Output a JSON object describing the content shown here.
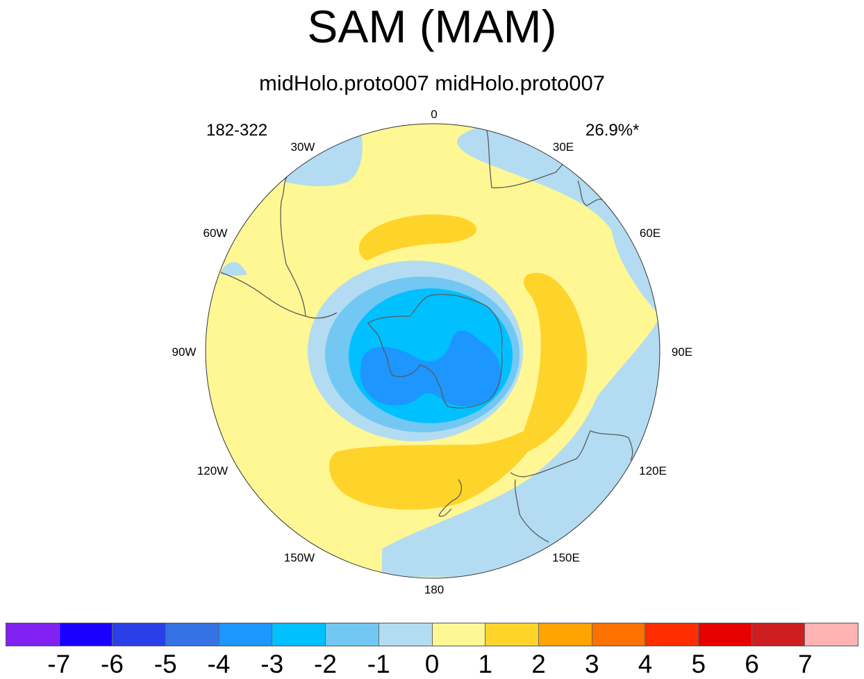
{
  "title": "SAM (MAM)",
  "subtitle": "midHolo.proto007  midHolo.proto007",
  "left_annotation": "182-322",
  "right_annotation": "26.9%*",
  "map": {
    "projection": "south polar stereographic",
    "longitude_labels": [
      "0",
      "30E",
      "60E",
      "90E",
      "120E",
      "150E",
      "180",
      "150W",
      "120W",
      "90W",
      "60W",
      "30W"
    ],
    "features": [
      "Antarctica",
      "South America",
      "Africa",
      "Australia",
      "New Zealand"
    ],
    "colors": {
      "background": "#fff794",
      "ocean_neg1": "#b3dcf2",
      "coast": "#5a5a5a"
    }
  },
  "colorbar": {
    "colors": [
      "#8122f0",
      "#1a00ff",
      "#2a40e6",
      "#3472e6",
      "#1e96ff",
      "#00c0ff",
      "#72c8f2",
      "#b3dcf2",
      "#fff794",
      "#ffd42a",
      "#ffa400",
      "#ff7200",
      "#ff2e00",
      "#e60000",
      "#cd1f1f",
      "#ffb3b3"
    ],
    "labels": [
      "-7",
      "-6",
      "-5",
      "-4",
      "-3",
      "-2",
      "-1",
      "0",
      "1",
      "2",
      "3",
      "4",
      "5",
      "6",
      "7"
    ]
  },
  "chart_data": {
    "type": "heatmap",
    "title": "SAM (MAM)",
    "subtitle": "midHolo.proto007  midHolo.proto007",
    "levels": [
      -7,
      -6,
      -5,
      -4,
      -3,
      -2,
      -1,
      0,
      1,
      2,
      3,
      4,
      5,
      6,
      7
    ],
    "value_range": [
      -4,
      2
    ],
    "description_of_pattern": "negative centre over Antarctica (min about -4), positive band in mid-latitudes (max about 2)"
  }
}
